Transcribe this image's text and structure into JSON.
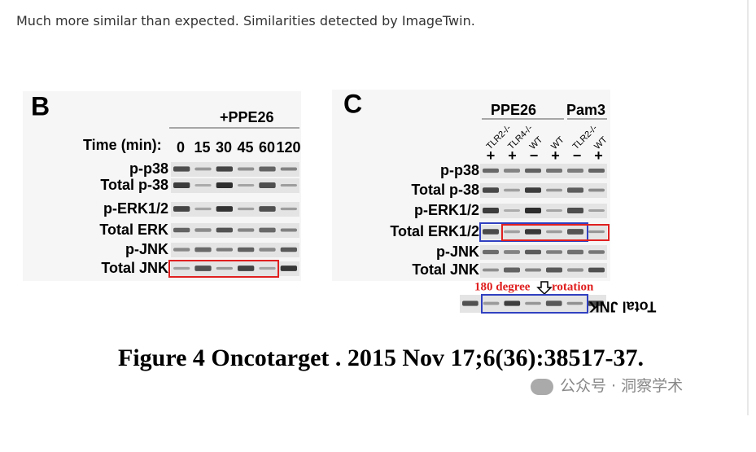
{
  "caption": "Much more similar than expected. Similarities detected by ImageTwin.",
  "panel_b": {
    "letter": "B",
    "treatment": "+PPE26",
    "time_label": "Time (min):",
    "times": [
      "0",
      "15",
      "30",
      "45",
      "60",
      "120"
    ],
    "rows": [
      "p-p38",
      "Total p-38",
      "p-ERK1/2",
      "Total ERK",
      "p-JNK",
      "Total JNK"
    ]
  },
  "panel_c": {
    "letter": "C",
    "groups": [
      "PPE26",
      "Pam3"
    ],
    "lanes": [
      "TLR2-/-",
      "TLR4-/-",
      "WT",
      "WT",
      "TLR2-/-",
      "WT"
    ],
    "signs": [
      "+",
      "+",
      "−",
      "+",
      "−",
      "+"
    ],
    "rows": [
      "p-p38",
      "Total p-38",
      "p-ERK1/2",
      "Total ERK1/2",
      "p-JNK",
      "Total JNK"
    ],
    "rotation_note": "180 degree",
    "rotation_word": "rotation",
    "rotated_label": "Total JNK"
  },
  "figure_caption": "Figure 4 Oncotarget . 2015 Nov 17;6(36):38517-37.",
  "watermark": "公众号 · 洞察学术"
}
